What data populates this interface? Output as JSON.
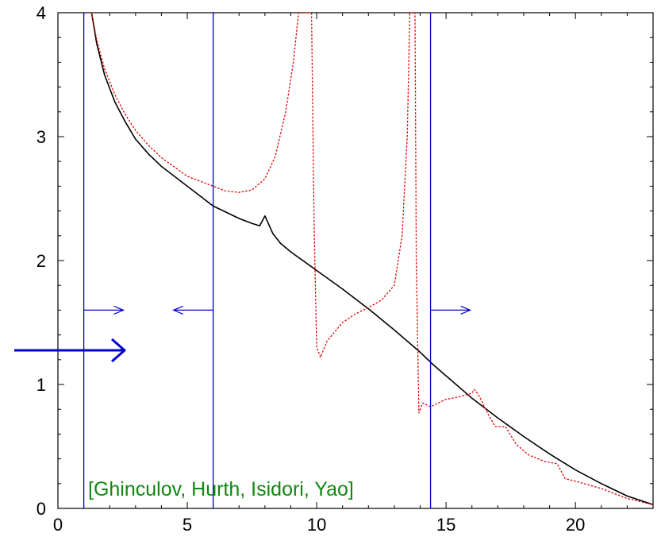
{
  "chart_data": {
    "type": "line",
    "xlim": [
      0,
      23
    ],
    "ylim": [
      0,
      4
    ],
    "x_ticks": [
      "0",
      "5",
      "10",
      "15",
      "20"
    ],
    "y_ticks": [
      "0",
      "1",
      "2",
      "3",
      "4"
    ],
    "grid": false,
    "series": [
      {
        "color": "#000000",
        "style": "solid",
        "points": [
          [
            1.3,
            4.0
          ],
          [
            1.5,
            3.75
          ],
          [
            1.8,
            3.5
          ],
          [
            2.2,
            3.28
          ],
          [
            2.6,
            3.12
          ],
          [
            3.0,
            2.98
          ],
          [
            3.5,
            2.86
          ],
          [
            4.0,
            2.76
          ],
          [
            5.0,
            2.6
          ],
          [
            6.0,
            2.44
          ],
          [
            7.0,
            2.34
          ],
          [
            7.5,
            2.3
          ],
          [
            7.8,
            2.28
          ],
          [
            8.0,
            2.36
          ],
          [
            8.3,
            2.22
          ],
          [
            8.6,
            2.14
          ],
          [
            9.0,
            2.07
          ],
          [
            10.0,
            1.92
          ],
          [
            11.0,
            1.77
          ],
          [
            12.0,
            1.61
          ],
          [
            13.0,
            1.44
          ],
          [
            14.0,
            1.26
          ],
          [
            14.5,
            1.16
          ],
          [
            15.0,
            1.07
          ],
          [
            16.0,
            0.89
          ],
          [
            17.0,
            0.73
          ],
          [
            18.0,
            0.58
          ],
          [
            19.0,
            0.44
          ],
          [
            20.0,
            0.31
          ],
          [
            21.0,
            0.2
          ],
          [
            22.0,
            0.1
          ],
          [
            23.0,
            0.03
          ]
        ]
      },
      {
        "color": "#e00000",
        "style": "dotted",
        "points": [
          [
            1.3,
            4.0
          ],
          [
            1.5,
            3.78
          ],
          [
            1.8,
            3.55
          ],
          [
            2.2,
            3.34
          ],
          [
            2.6,
            3.18
          ],
          [
            3.0,
            3.05
          ],
          [
            3.5,
            2.93
          ],
          [
            4.0,
            2.83
          ],
          [
            5.0,
            2.68
          ],
          [
            6.0,
            2.6
          ],
          [
            6.5,
            2.56
          ],
          [
            7.0,
            2.55
          ],
          [
            7.5,
            2.57
          ],
          [
            8.0,
            2.66
          ],
          [
            8.4,
            2.84
          ],
          [
            8.8,
            3.2
          ],
          [
            9.1,
            3.6
          ],
          [
            9.3,
            4.0
          ],
          [
            9.8,
            4.0
          ],
          [
            9.9,
            2.3
          ],
          [
            10.0,
            1.3
          ],
          [
            10.15,
            1.22
          ],
          [
            10.4,
            1.35
          ],
          [
            11.0,
            1.5
          ],
          [
            11.5,
            1.57
          ],
          [
            12.0,
            1.62
          ],
          [
            12.5,
            1.68
          ],
          [
            13.0,
            1.8
          ],
          [
            13.3,
            2.2
          ],
          [
            13.5,
            3.0
          ],
          [
            13.6,
            4.0
          ],
          [
            13.8,
            4.0
          ],
          [
            13.85,
            2.0
          ],
          [
            13.95,
            0.77
          ],
          [
            14.1,
            0.85
          ],
          [
            14.4,
            0.82
          ],
          [
            15.0,
            0.88
          ],
          [
            15.5,
            0.9
          ],
          [
            16.0,
            0.93
          ],
          [
            16.1,
            0.96
          ],
          [
            16.3,
            0.9
          ],
          [
            16.6,
            0.77
          ],
          [
            16.9,
            0.66
          ],
          [
            17.3,
            0.66
          ],
          [
            17.7,
            0.52
          ],
          [
            18.2,
            0.43
          ],
          [
            18.8,
            0.38
          ],
          [
            19.3,
            0.36
          ],
          [
            19.6,
            0.24
          ],
          [
            20.0,
            0.22
          ],
          [
            21.0,
            0.16
          ],
          [
            22.0,
            0.08
          ],
          [
            23.0,
            0.03
          ]
        ]
      }
    ],
    "vertical_lines": [
      1.0,
      6.0,
      14.4
    ],
    "small_arrows": [
      {
        "x": 1.0,
        "y": 1.6,
        "direction": "right"
      },
      {
        "x": 6.0,
        "y": 1.6,
        "direction": "left"
      },
      {
        "x": 14.4,
        "y": 1.6,
        "direction": "right"
      }
    ],
    "annotation": "[Ghinculov, Hurth, Isidori, Yao]",
    "colors": {
      "axes": "#000000",
      "markers": "#0000d0",
      "annotation": "#118811"
    }
  }
}
